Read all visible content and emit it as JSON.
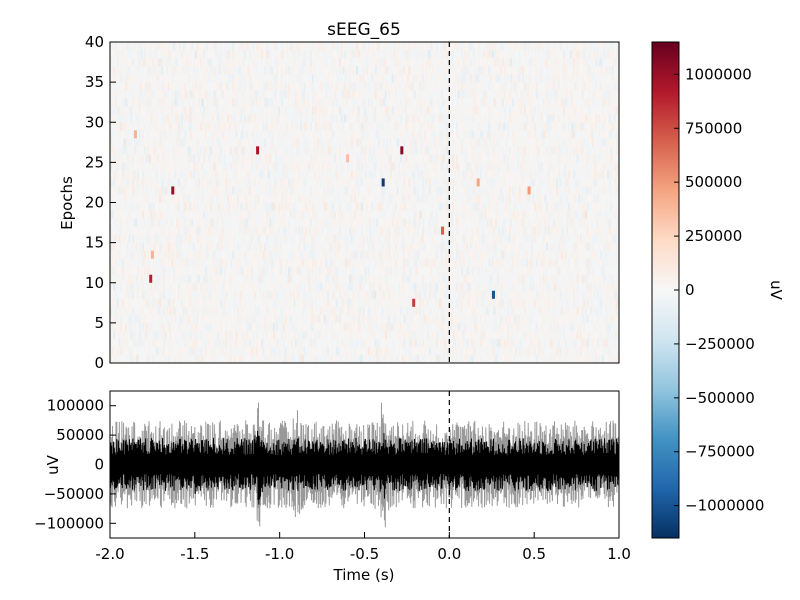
{
  "chart_data": [
    {
      "type": "heatmap",
      "title": "sEEG_65",
      "xlabel": "",
      "ylabel": "Epochs",
      "xlim": [
        -2.0,
        1.0
      ],
      "ylim": [
        0,
        40
      ],
      "y_ticks": [
        "0",
        "5",
        "10",
        "15",
        "20",
        "25",
        "30",
        "35",
        "40"
      ],
      "event_marker_x": 0.0,
      "colormap": "RdBu_r",
      "colorbar": {
        "label": "uV",
        "range": [
          -1150000,
          1150000
        ],
        "ticks": [
          "1000000",
          "750000",
          "500000",
          "250000",
          "0",
          "−250000",
          "−500000",
          "−750000",
          "−1000000"
        ],
        "tick_values": [
          1000000,
          750000,
          500000,
          250000,
          0,
          -250000,
          -500000,
          -750000,
          -1000000
        ],
        "colors": [
          "#053061",
          "#2166ac",
          "#4393c3",
          "#92c5de",
          "#d1e5f0",
          "#f7f7f7",
          "#fddbc7",
          "#f4a582",
          "#d6604d",
          "#b2182b",
          "#67001f"
        ]
      },
      "highlighted_cells": [
        {
          "time": -1.63,
          "epoch": 21.5,
          "value": 1000000
        },
        {
          "time": -1.13,
          "epoch": 26.5,
          "value": 950000
        },
        {
          "time": -0.28,
          "epoch": 26.5,
          "value": 1050000
        },
        {
          "time": -1.76,
          "epoch": 10.5,
          "value": 900000
        },
        {
          "time": -0.39,
          "epoch": 22.5,
          "value": -1100000
        },
        {
          "time": 0.26,
          "epoch": 8.5,
          "value": -1000000
        },
        {
          "time": -0.21,
          "epoch": 7.5,
          "value": 800000
        },
        {
          "time": -0.04,
          "epoch": 16.5,
          "value": 700000
        },
        {
          "time": -1.75,
          "epoch": 13.5,
          "value": 400000
        },
        {
          "time": 0.17,
          "epoch": 22.5,
          "value": 450000
        },
        {
          "time": -0.6,
          "epoch": 25.5,
          "value": 350000
        },
        {
          "time": 0.47,
          "epoch": 21.5,
          "value": 500000
        },
        {
          "time": -1.85,
          "epoch": 28.5,
          "value": 400000
        }
      ]
    },
    {
      "type": "line",
      "title": "",
      "xlabel": "Time (s)",
      "ylabel": "uV",
      "xlim": [
        -2.0,
        1.0
      ],
      "ylim": [
        -125000,
        125000
      ],
      "x_ticks": [
        "-2.0",
        "-1.5",
        "-1.0",
        "-0.5",
        "0.0",
        "0.5",
        "1.0"
      ],
      "y_ticks": [
        "100000",
        "50000",
        "0",
        "−50000",
        "−100000"
      ],
      "y_tick_values": [
        100000,
        50000,
        0,
        -50000,
        -100000
      ],
      "event_marker_x": 0.0,
      "series": [
        {
          "color": "#000000",
          "envelope_amplitude": 45000,
          "bursts": [
            {
              "time": -1.12,
              "amplitude": 70000
            },
            {
              "time": -0.39,
              "amplitude": 65000
            },
            {
              "time": -1.5,
              "amplitude": 50000
            }
          ]
        },
        {
          "color": "#999999",
          "envelope_amplitude": 75000,
          "bursts": [
            {
              "time": -0.39,
              "amplitude": 125000
            },
            {
              "time": -1.12,
              "amplitude": 115000
            },
            {
              "time": -0.9,
              "amplitude": 95000
            }
          ]
        }
      ]
    }
  ]
}
